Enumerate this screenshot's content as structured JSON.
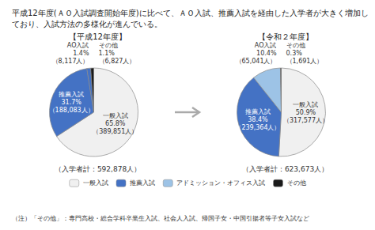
{
  "chart_data": {
    "type": "pie",
    "title": "平成12年度(ＡＯ入試調査開始年度)に比べて、ＡＯ入試、推薦入試を経由した入学者が大きく増加しており、入試方法の多様化が進んでいる。",
    "annotations": [
      "（注）「その他」：専門高校・総合学科卒業生入試、社会人入試、帰国子女・中国引揚者等子女入試など"
    ],
    "legend": "bottom",
    "legend_labels": [
      "一般入試",
      "推薦入試",
      "アドミッション・オフィス入試",
      "その他"
    ],
    "legend_colors": [
      "#f0f0f0",
      "#4472c4",
      "#9dc3e6",
      "#1a1a1a"
    ],
    "edge_color": "#888888",
    "pies": [
      {
        "title": "【平成12年度】",
        "subtitle": "（入学者計：592,878人）",
        "labels": [
          "一般入試",
          "推薦入試",
          "AO入試",
          "その他"
        ],
        "values": [
          65.8,
          31.7,
          1.4,
          1.1
        ],
        "value_labels": [
          "65.8%",
          "31.7%",
          "1.4%",
          "1.1%"
        ],
        "count_labels": [
          "（389,851人）",
          "（188,083人）",
          "（8,117人）",
          "（6,827人）"
        ],
        "colors": [
          "#f0f0f0",
          "#4472c4",
          "#4472c4",
          "#1a1a1a"
        ]
      },
      {
        "title": "【令和２年度】",
        "subtitle": "（入学者計：623,673人）",
        "labels": [
          "一般入試",
          "推薦入試",
          "AO入試",
          "その他"
        ],
        "values": [
          50.9,
          38.4,
          10.4,
          0.3
        ],
        "value_labels": [
          "50.9%",
          "38.4%",
          "10.4%",
          "0.3%"
        ],
        "count_labels": [
          "（317,577人）",
          "（239,364人）",
          "（65,041人）",
          "（1,691人）"
        ],
        "colors": [
          "#f0f0f0",
          "#4472c4",
          "#9dc3e6",
          "#1a1a1a"
        ]
      }
    ]
  }
}
